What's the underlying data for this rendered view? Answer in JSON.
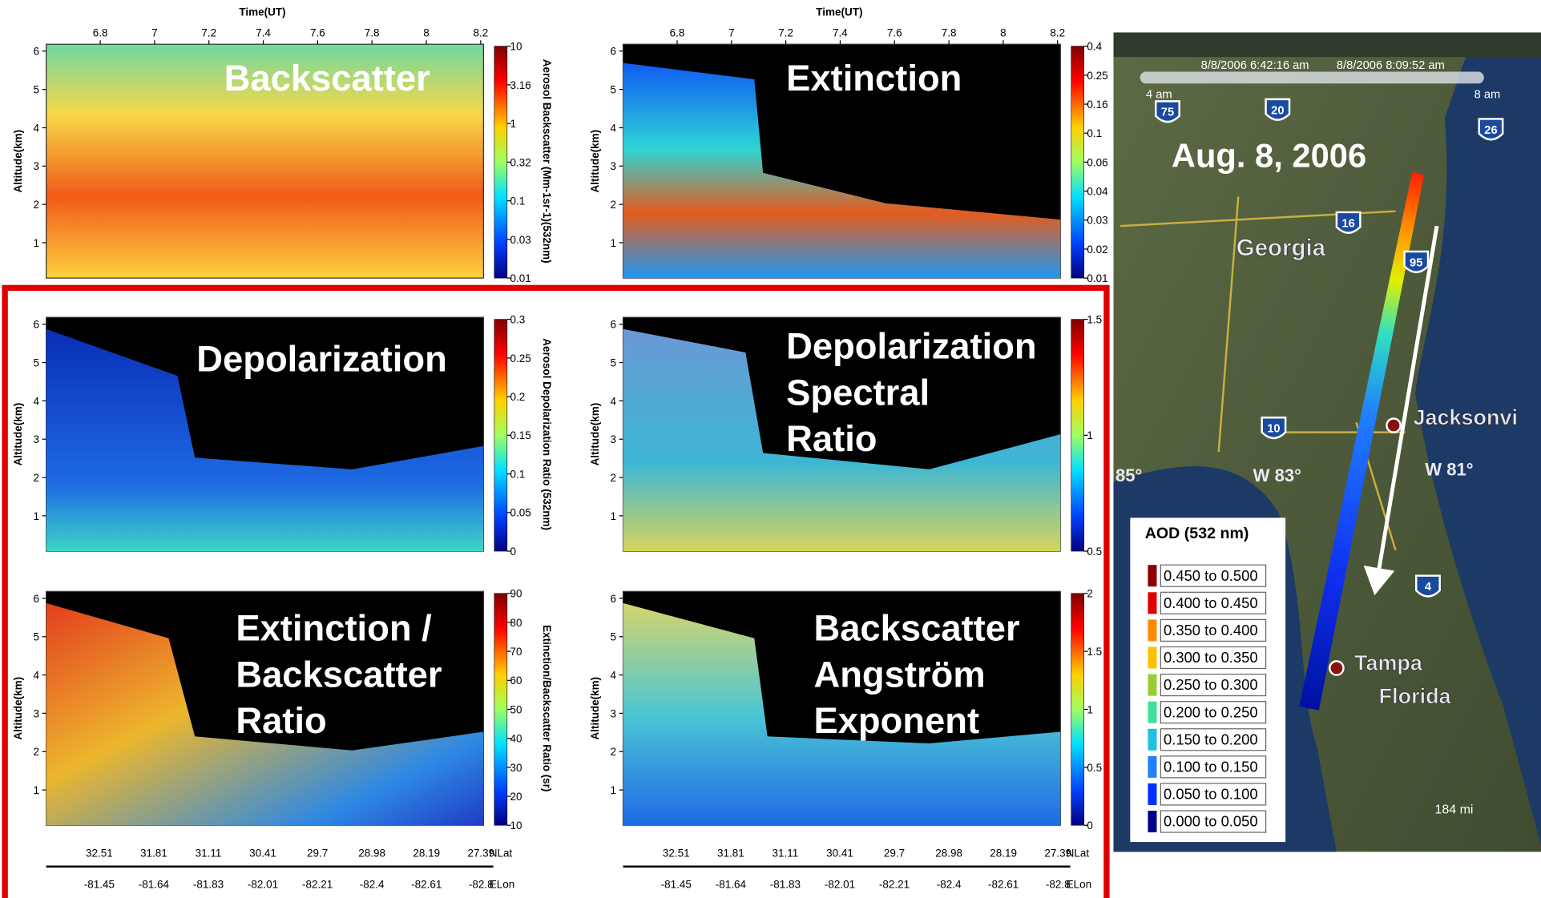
{
  "time_axis": {
    "label": "Time(UT)",
    "ticks": [
      "6.8",
      "7",
      "7.2",
      "7.4",
      "7.6",
      "7.8",
      "8",
      "8.2"
    ]
  },
  "position_axis": {
    "lat_label": "NLat",
    "lat_ticks": [
      "32.51",
      "31.81",
      "31.11",
      "30.41",
      "29.7",
      "28.98",
      "28.19",
      "27.39"
    ],
    "lon_label": "ELon",
    "lon_ticks": [
      "-81.45",
      "-81.64",
      "-81.83",
      "-82.01",
      "-82.21",
      "-82.4",
      "-82.61",
      "-82.8"
    ]
  },
  "panels": [
    {
      "title": [
        "Backscatter"
      ],
      "y_axis_label": "Altitude(km)",
      "y_ticks": [
        "6",
        "5",
        "4",
        "3",
        "2",
        "1"
      ],
      "colorbar_label": "Aerosol Backscatter (Mm-1sr-1)(532nm)",
      "colorbar_ticks": [
        "10",
        "3.16",
        "1",
        "0.32",
        "0.1",
        "0.03",
        "0.01"
      ]
    },
    {
      "title": [
        "Extinction"
      ],
      "y_axis_label": "Altitude(km)",
      "y_ticks": [
        "6",
        "5",
        "4",
        "3",
        "2",
        "1"
      ],
      "colorbar_ticks": [
        "0.4",
        "0.25",
        "0.16",
        "0.1",
        "0.06",
        "0.04",
        "0.03",
        "0.02",
        "0.01"
      ]
    },
    {
      "title": [
        "Depolarization"
      ],
      "y_axis_label": "Altitude(km)",
      "y_ticks": [
        "6",
        "5",
        "4",
        "3",
        "2",
        "1"
      ],
      "colorbar_label": "Aerosol Depolarization Ratio (532nm)",
      "colorbar_ticks": [
        "0.3",
        "0.25",
        "0.2",
        "0.15",
        "0.1",
        "0.05",
        "0"
      ]
    },
    {
      "title": [
        "Depolarization",
        "Spectral",
        "Ratio"
      ],
      "y_axis_label": "Altitude(km)",
      "y_ticks": [
        "6",
        "5",
        "4",
        "3",
        "2",
        "1"
      ],
      "colorbar_ticks": [
        "1.5",
        "1",
        "0.5"
      ]
    },
    {
      "title": [
        "Extinction /",
        "Backscatter",
        "Ratio"
      ],
      "y_axis_label": "Altitude(km)",
      "y_ticks": [
        "6",
        "5",
        "4",
        "3",
        "2",
        "1"
      ],
      "colorbar_label": "Extinction/Backscatter Ratio (sr)",
      "colorbar_ticks": [
        "90",
        "80",
        "70",
        "60",
        "50",
        "40",
        "30",
        "20",
        "10"
      ]
    },
    {
      "title": [
        "Backscatter",
        "Angström",
        "Exponent"
      ],
      "y_axis_label": "Altitude(km)",
      "y_ticks": [
        "6",
        "5",
        "4",
        "3",
        "2",
        "1"
      ],
      "colorbar_ticks": [
        "2",
        "1.5",
        "1",
        "0.5",
        "0"
      ]
    }
  ],
  "map": {
    "date": "Aug. 8, 2006",
    "slider": {
      "start": "8/8/2006  6:42:16 am",
      "end": "8/8/2006  8:09:52 am",
      "left": "4 am",
      "right": "8 am"
    },
    "places": [
      "Georgia",
      "Jacksonvi",
      "Tampa",
      "Florida"
    ],
    "grid_labels": [
      "W 83°",
      "W 81°",
      "85°"
    ],
    "highways": [
      "75",
      "20",
      "26",
      "16",
      "95",
      "10",
      "4"
    ],
    "scale": "184 mi",
    "legend": {
      "title": "AOD (532 nm)",
      "entries": [
        {
          "label": "0.450 to 0.500",
          "color": "#8b0000"
        },
        {
          "label": "0.400 to 0.450",
          "color": "#e00000"
        },
        {
          "label": "0.350 to 0.400",
          "color": "#ff8c00"
        },
        {
          "label": "0.300 to 0.350",
          "color": "#ffc000"
        },
        {
          "label": "0.250 to 0.300",
          "color": "#9acd32"
        },
        {
          "label": "0.200 to 0.250",
          "color": "#40e0a0"
        },
        {
          "label": "0.150 to 0.200",
          "color": "#20c0e0"
        },
        {
          "label": "0.100 to 0.150",
          "color": "#2080ff"
        },
        {
          "label": "0.050 to 0.100",
          "color": "#0030ff"
        },
        {
          "label": "0.000 to 0.050",
          "color": "#00008b"
        }
      ]
    }
  }
}
